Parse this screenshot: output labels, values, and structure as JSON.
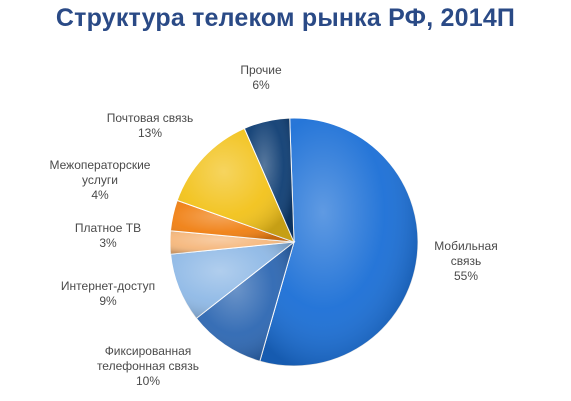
{
  "title": "Структура телеком рынка РФ, 2014П",
  "chart_data": {
    "type": "pie",
    "title": "Структура телеком рынка РФ, 2014П",
    "value_unit": "%",
    "slices": [
      {
        "label": "Мобильная связь",
        "label_lines": [
          "Мобильная",
          "связь"
        ],
        "value": 55,
        "value_text": "55%",
        "color": "#1b6fd6"
      },
      {
        "label": "Фиксированная телефонная связь",
        "label_lines": [
          "Фиксированная",
          "телефонная связь"
        ],
        "value": 10,
        "value_text": "10%",
        "color": "#2d67b2"
      },
      {
        "label": "Интернет-доступ",
        "label_lines": [
          "Интернет-доступ"
        ],
        "value": 9,
        "value_text": "9%",
        "color": "#8fb9e6"
      },
      {
        "label": "Платное ТВ",
        "label_lines": [
          "Платное ТВ"
        ],
        "value": 3,
        "value_text": "3%",
        "color": "#f5b77c"
      },
      {
        "label": "Межоператорские услуги",
        "label_lines": [
          "Межоператорские",
          "услуги"
        ],
        "value": 4,
        "value_text": "4%",
        "color": "#f07f12"
      },
      {
        "label": "Почтовая связь",
        "label_lines": [
          "Почтовая связь"
        ],
        "value": 13,
        "value_text": "13%",
        "color": "#f2c21a"
      },
      {
        "label": "Прочие",
        "label_lines": [
          "Прочие"
        ],
        "value": 6,
        "value_text": "6%",
        "color": "#0e3d73"
      }
    ]
  }
}
